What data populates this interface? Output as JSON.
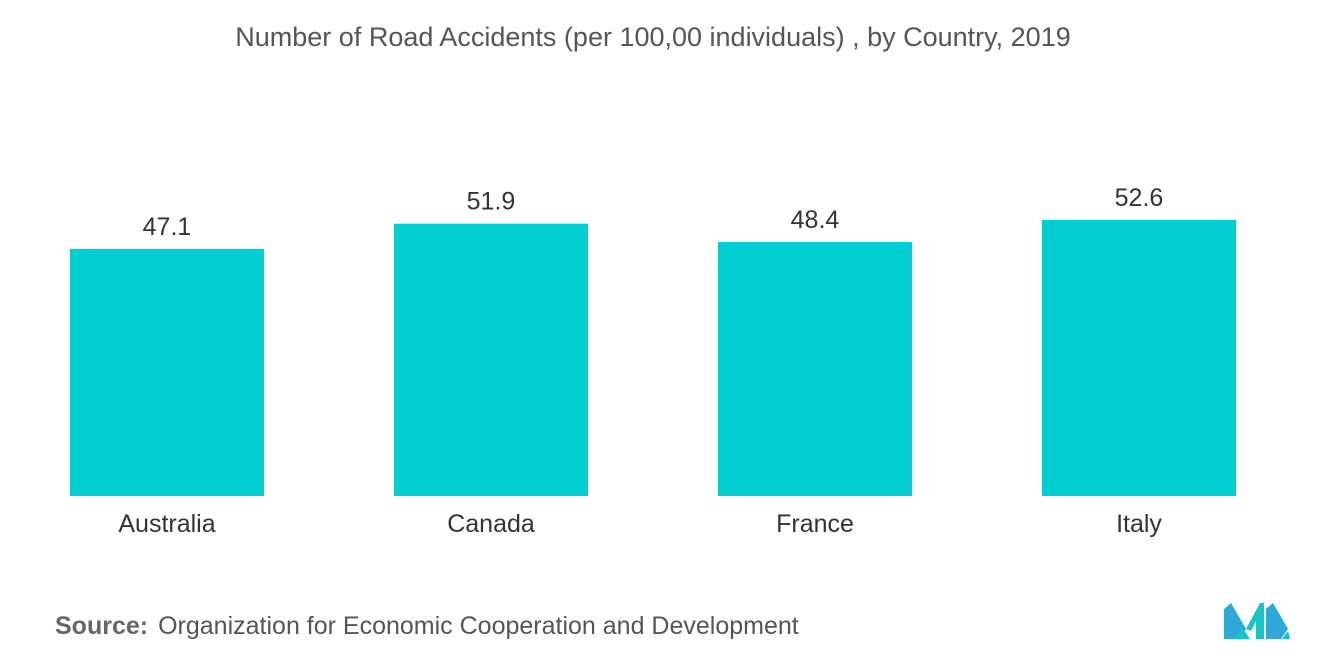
{
  "chart_data": {
    "type": "bar",
    "title": "Number of Road Accidents (per 100,00 individuals) , by Country, 2019",
    "categories": [
      "Australia",
      "Canada",
      "France",
      "Italy"
    ],
    "values": [
      47.1,
      51.9,
      48.4,
      52.6
    ],
    "value_labels": [
      "47.1",
      "51.9",
      "48.4",
      "52.6"
    ],
    "ylim": [
      0,
      52.6
    ],
    "grid": false,
    "y_axis_visible": false,
    "bar_color": "#00CED1"
  },
  "source": {
    "prefix": "Source:",
    "text": "Organization for Economic Cooperation and Development"
  },
  "logo": {
    "icon": "mordor-intelligence-logo",
    "color_primary": "#2EA8D8",
    "color_secondary": "#16C5C8"
  }
}
